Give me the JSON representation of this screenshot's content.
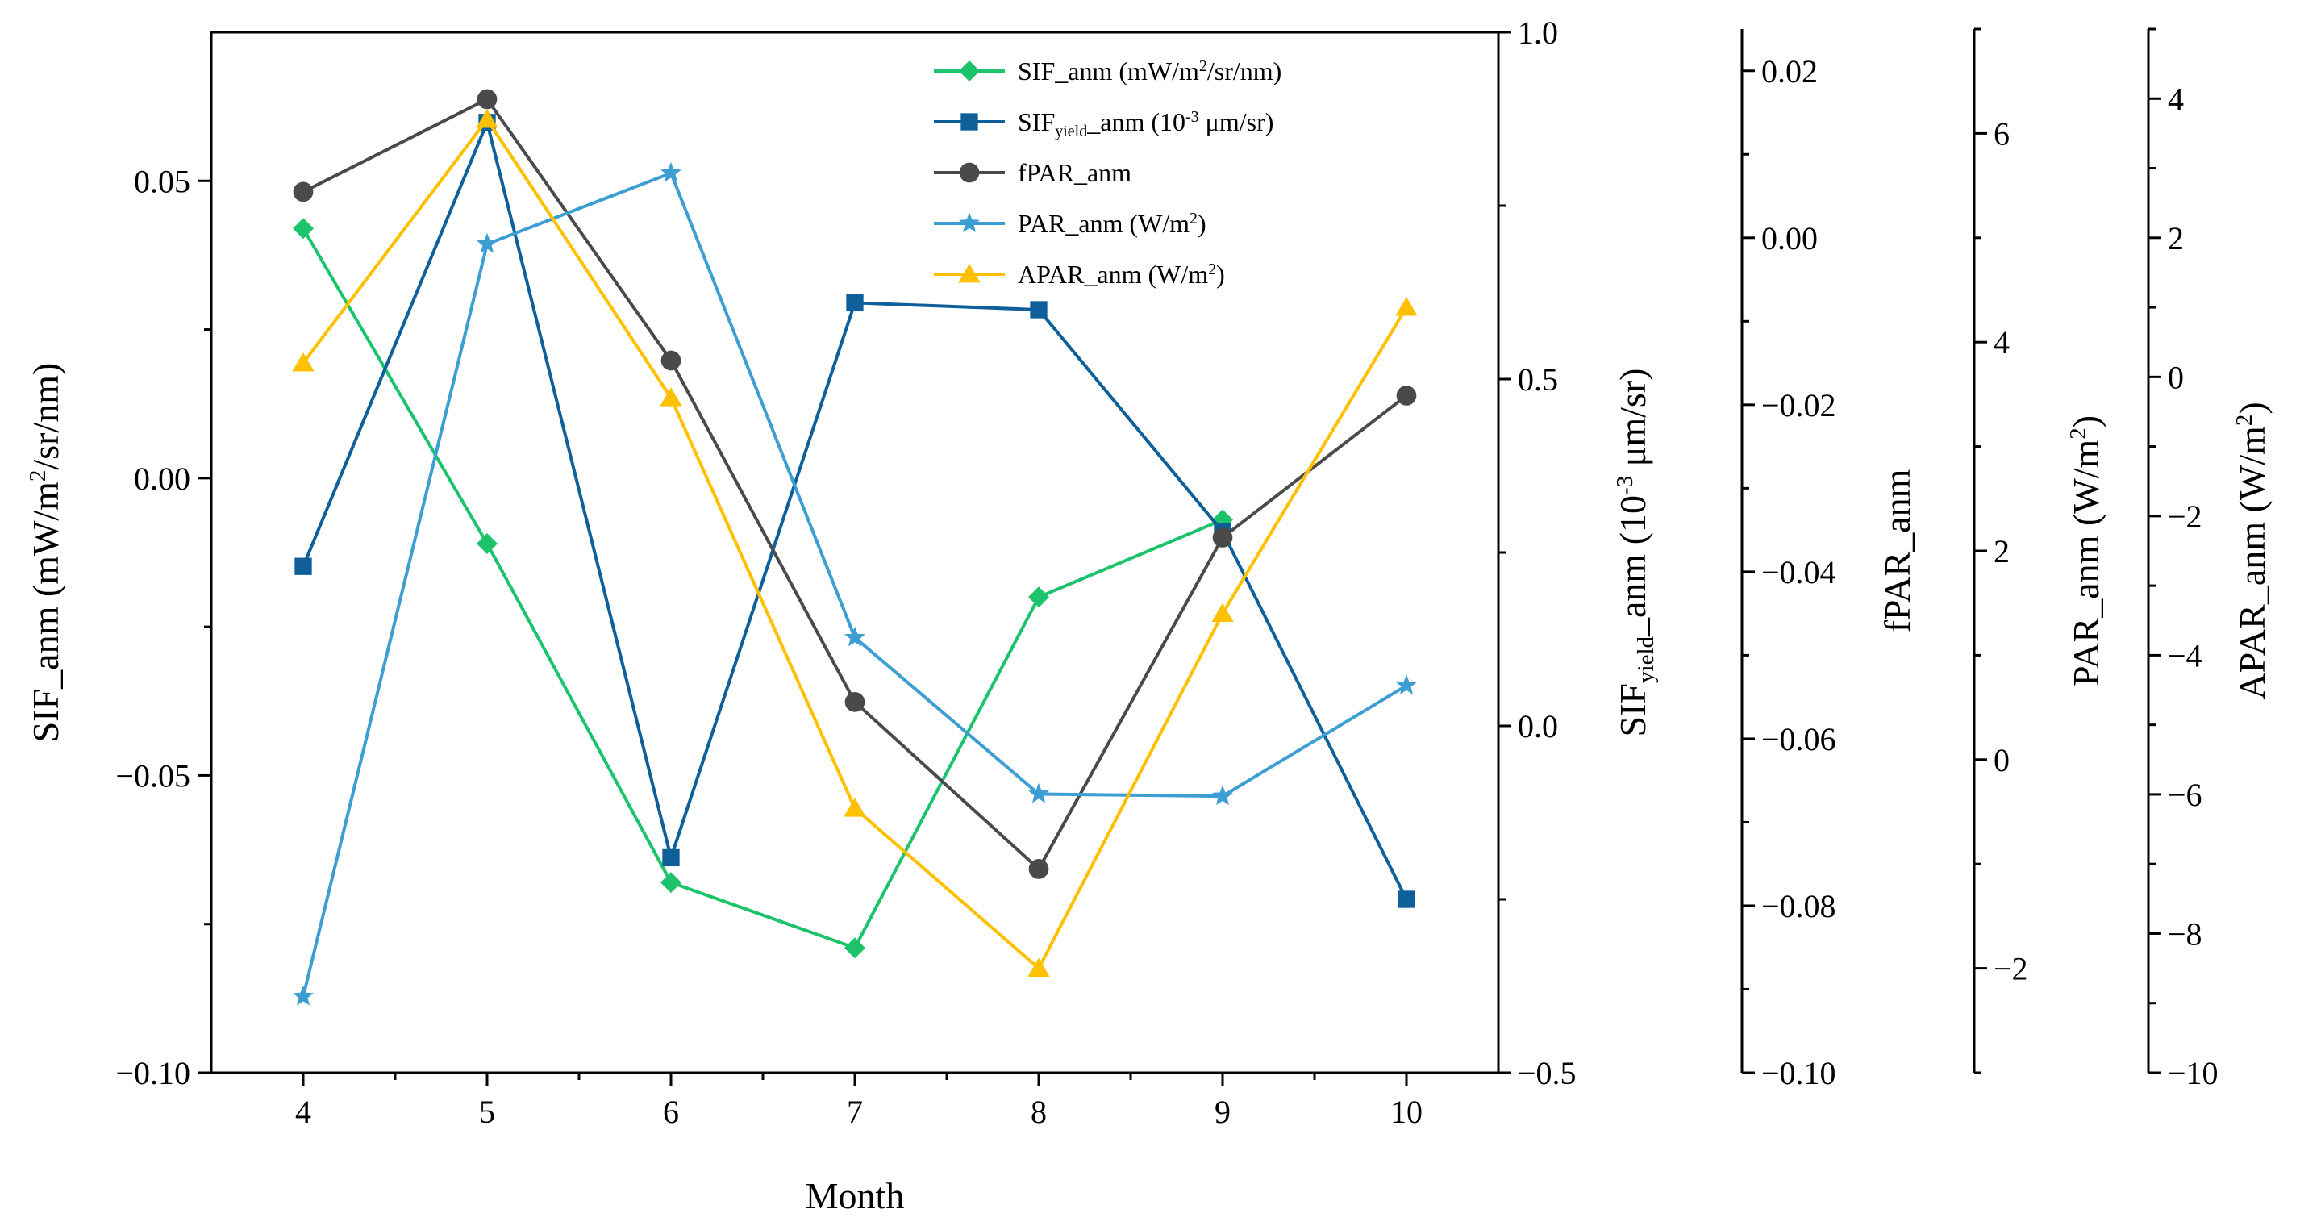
{
  "chart_data": {
    "type": "line",
    "x": [
      4,
      5,
      6,
      7,
      8,
      9,
      10
    ],
    "xlabel": "Month",
    "xlim": [
      3.5,
      10.5
    ],
    "xticks": [
      "4",
      "5",
      "6",
      "7",
      "8",
      "9",
      "10"
    ],
    "axes": [
      {
        "id": "sif",
        "label_parts": [
          {
            "t": "SIF_anm (mW/m",
            "s": "n"
          },
          {
            "t": "2",
            "s": "sup"
          },
          {
            "t": "/sr/nm)",
            "s": "n"
          }
        ],
        "ylim": [
          -0.1,
          0.075
        ],
        "ticks": [
          -0.1,
          -0.05,
          0.0,
          0.05
        ],
        "tick_labels": [
          "−0.10",
          "−0.05",
          "0.00",
          "0.05"
        ],
        "minor_ticks": [
          -0.075,
          -0.025,
          0.025
        ]
      },
      {
        "id": "sifyield",
        "label_parts": [
          {
            "t": "SIF",
            "s": "n"
          },
          {
            "t": "yield",
            "s": "sub"
          },
          {
            "t": "_anm (10",
            "s": "n"
          },
          {
            "t": "-3",
            "s": "sup"
          },
          {
            "t": " μm/sr)",
            "s": "n"
          }
        ],
        "ylim": [
          -0.5,
          1.0
        ],
        "ticks": [
          -0.5,
          0.0,
          0.5,
          1.0
        ],
        "tick_labels": [
          "−0.5",
          "0.0",
          "0.5",
          "1.0"
        ],
        "minor_ticks": [
          -0.25,
          0.25,
          0.75
        ]
      },
      {
        "id": "fpar",
        "label_parts": [
          {
            "t": "fPAR_anm",
            "s": "n"
          }
        ],
        "ylim": [
          -0.1,
          0.025
        ],
        "ticks": [
          -0.1,
          -0.08,
          -0.06,
          -0.04,
          -0.02,
          0.0,
          0.02
        ],
        "tick_labels": [
          "−0.10",
          "−0.08",
          "−0.06",
          "−0.04",
          "−0.02",
          "0.00",
          "0.02"
        ],
        "minor_ticks": [
          -0.09,
          -0.07,
          -0.05,
          -0.03,
          -0.01,
          0.01
        ]
      },
      {
        "id": "par",
        "label_parts": [
          {
            "t": "PAR_anm (W/m",
            "s": "n"
          },
          {
            "t": "2",
            "s": "sup"
          },
          {
            "t": ")",
            "s": "n"
          }
        ],
        "ylim": [
          -3.0,
          7.0
        ],
        "ticks": [
          -2,
          0,
          2,
          4,
          6
        ],
        "tick_labels": [
          "−2",
          "0",
          "2",
          "4",
          "6"
        ],
        "minor_ticks": [
          -3,
          -1,
          1,
          3,
          5,
          7
        ]
      },
      {
        "id": "apar",
        "label_parts": [
          {
            "t": "APAR_anm (W/m",
            "s": "n"
          },
          {
            "t": "2",
            "s": "sup"
          },
          {
            "t": ")",
            "s": "n"
          }
        ],
        "ylim": [
          -10,
          5
        ],
        "ticks": [
          -10,
          -8,
          -6,
          -4,
          -2,
          0,
          2,
          4
        ],
        "tick_labels": [
          "−10",
          "−8",
          "−6",
          "−4",
          "−2",
          "0",
          "2",
          "4"
        ],
        "minor_ticks": [
          -9,
          -7,
          -5,
          -3,
          -1,
          1,
          3,
          5
        ]
      }
    ],
    "series": [
      {
        "name": "SIF_anm",
        "legend_parts": [
          {
            "t": "SIF_anm (mW/m",
            "s": "n"
          },
          {
            "t": "2",
            "s": "sup"
          },
          {
            "t": "/sr/nm)",
            "s": "n"
          }
        ],
        "axis": "sif",
        "marker": "diamond",
        "color": "#1dc36a",
        "values": [
          0.042,
          -0.011,
          -0.068,
          -0.079,
          -0.02,
          -0.007,
          null
        ]
      },
      {
        "name": "SIFyield_anm",
        "legend_parts": [
          {
            "t": "SIF",
            "s": "n"
          },
          {
            "t": "yield",
            "s": "sub"
          },
          {
            "t": "_anm (10",
            "s": "n"
          },
          {
            "t": "-3",
            "s": "sup"
          },
          {
            "t": " μm/sr)",
            "s": "n"
          }
        ],
        "axis": "sifyield",
        "marker": "square",
        "color": "#0f5f9a",
        "values": [
          0.23,
          0.87,
          -0.19,
          0.61,
          0.6,
          0.28,
          -0.25
        ]
      },
      {
        "name": "fPAR_anm",
        "legend_parts": [
          {
            "t": "fPAR_anm",
            "s": "n"
          }
        ],
        "axis": "fpar",
        "marker": "circle",
        "color": "#4a4a4a",
        "values": [
          0.0055,
          0.0166,
          -0.0147,
          -0.0556,
          -0.0756,
          -0.0359,
          -0.0189
        ]
      },
      {
        "name": "PAR_anm",
        "legend_parts": [
          {
            "t": "PAR_anm (W/m",
            "s": "n"
          },
          {
            "t": "2",
            "s": "sup"
          },
          {
            "t": ")",
            "s": "n"
          }
        ],
        "axis": "par",
        "marker": "star",
        "color": "#3c9ed2",
        "values": [
          -2.27,
          4.94,
          5.62,
          1.17,
          -0.33,
          -0.35,
          0.71
        ]
      },
      {
        "name": "APAR_anm",
        "legend_parts": [
          {
            "t": "APAR_anm (W/m",
            "s": "n"
          },
          {
            "t": "2",
            "s": "sup"
          },
          {
            "t": ")",
            "s": "n"
          }
        ],
        "axis": "apar",
        "marker": "triangle",
        "color": "#ffc000",
        "values": [
          0.2,
          3.7,
          -0.3,
          -6.2,
          -8.5,
          -3.4,
          1.0
        ]
      }
    ]
  }
}
